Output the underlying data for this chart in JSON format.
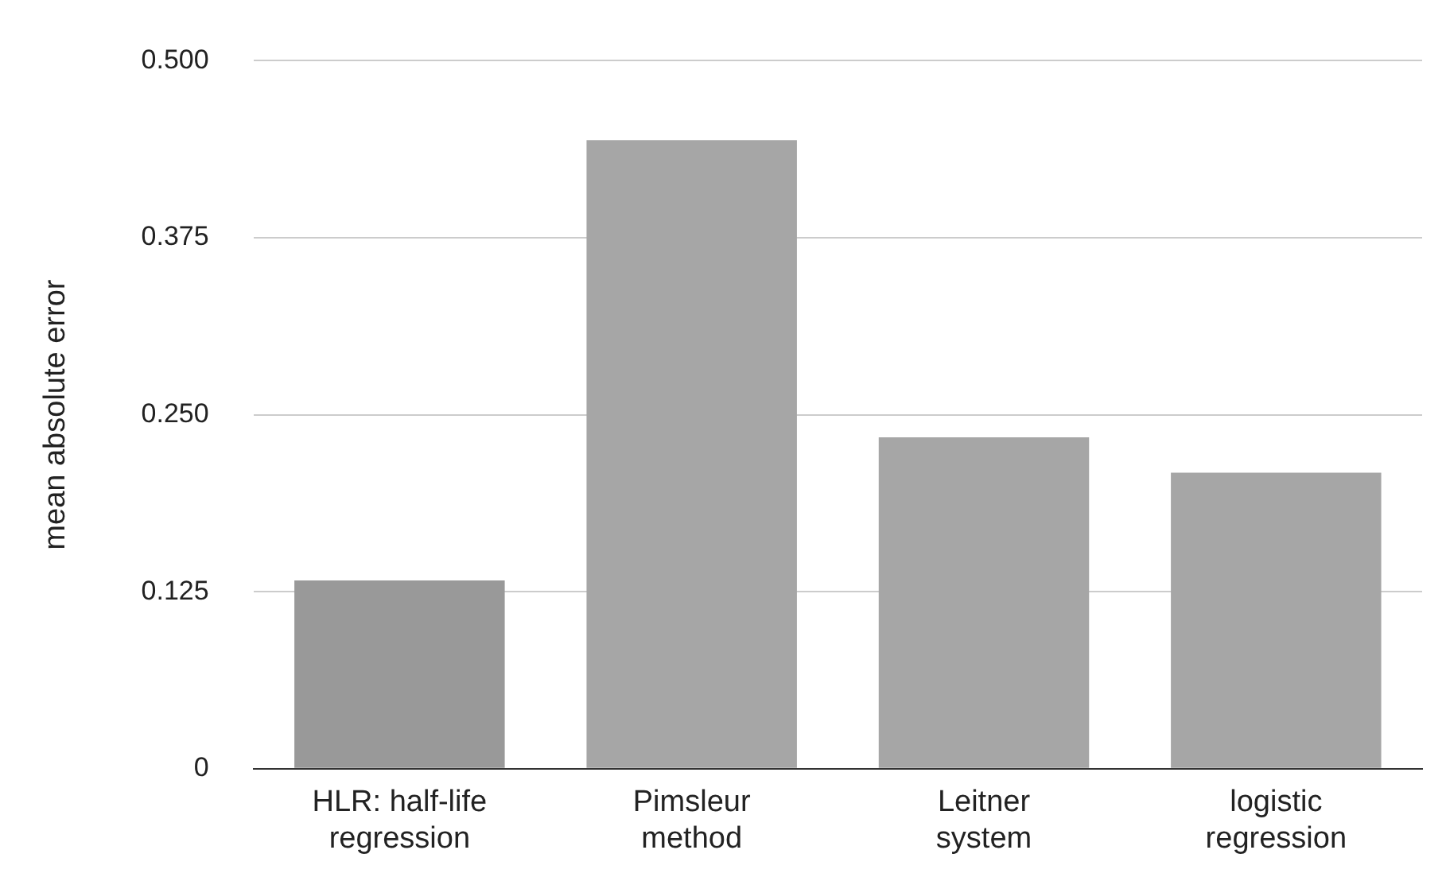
{
  "chart_data": {
    "type": "bar",
    "ylabel": "mean absolute error",
    "categories": [
      "HLR: half-life regression",
      "Pimsleur method",
      "Leitner system",
      "logistic regression"
    ],
    "values": [
      0.133,
      0.444,
      0.234,
      0.209
    ],
    "colors": [
      "#999999",
      "#a6a6a6",
      "#a6a6a6",
      "#a6a6a6"
    ],
    "ylim": [
      0,
      0.5
    ],
    "yticks": [
      {
        "value": 0,
        "label": "0"
      },
      0.125,
      {
        "value": 0.25,
        "label": "0.250"
      },
      0.375,
      {
        "value": 0.5,
        "label": "0.500"
      }
    ],
    "grid": "y",
    "legend": false
  }
}
